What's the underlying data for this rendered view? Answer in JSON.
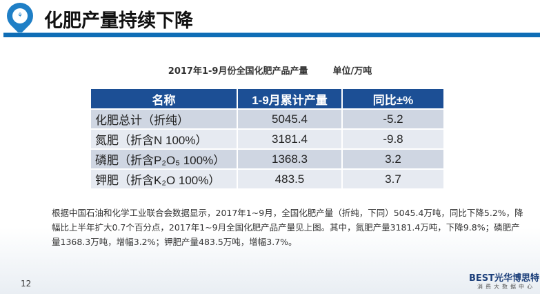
{
  "header": {
    "title": "化肥产量持续下降"
  },
  "table_caption": {
    "title": "2017年1-9月份全国化肥产品产量",
    "unit": "单位/万吨"
  },
  "table": {
    "columns": [
      "名称",
      "1-9月累计产量",
      "同比±%"
    ],
    "rows": [
      {
        "name": "化肥总计（折纯）",
        "value": "5045.4",
        "yoy": "-5.2"
      },
      {
        "name": "氮肥（折含N 100%）",
        "value": "3181.4",
        "yoy": "-9.8"
      },
      {
        "name": "磷肥（折含P₂O₅ 100%）",
        "value": "1368.3",
        "yoy": "3.2"
      },
      {
        "name": "钾肥（折含K₂O  100%）",
        "value": "483.5",
        "yoy": "3.7"
      }
    ]
  },
  "paragraph": "根据中国石油和化学工业联合会数据显示，2017年1~9月，全国化肥产量（折纯，下同）5045.4万吨，同比下降5.2%，降幅比上半年扩大0.7个百分点，2017年1~9月全国化肥产品产量见上图。其中，氮肥产量3181.4万吨，下降9.8%；磷肥产量1368.3万吨，增幅3.2%；钾肥产量483.5万吨，增幅3.7%。",
  "footer": {
    "page": "12",
    "brand": "BEST光华博思特",
    "brand_sub": "消费大数据中心"
  },
  "colors": {
    "accent": "#0f6db6",
    "table_header": "#1c4f95"
  }
}
